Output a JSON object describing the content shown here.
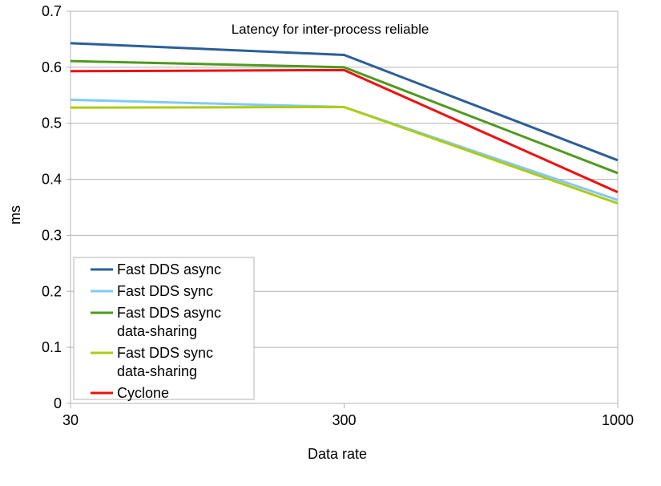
{
  "chart_data": {
    "type": "line",
    "title": "Latency for inter-process reliable",
    "xlabel": "Data rate",
    "ylabel": "ms",
    "categories": [
      "30",
      "300",
      "1000"
    ],
    "ylim": [
      0,
      0.7
    ],
    "yticks": [
      "0",
      "0.1",
      "0.2",
      "0.3",
      "0.4",
      "0.5",
      "0.6",
      "0.7"
    ],
    "grid": true,
    "legend_position": "bottom-left",
    "series": [
      {
        "name": "Fast DDS async",
        "label_lines": [
          "Fast DDS async"
        ],
        "color": "#2c5f96",
        "values": [
          0.643,
          0.622,
          0.434
        ]
      },
      {
        "name": "Fast DDS sync",
        "label_lines": [
          "Fast DDS sync"
        ],
        "color": "#83c9f4",
        "values": [
          0.542,
          0.529,
          0.363
        ]
      },
      {
        "name": "Fast DDS async data-sharing",
        "label_lines": [
          "Fast DDS async",
          "data-sharing"
        ],
        "color": "#4e9a1f",
        "values": [
          0.611,
          0.6,
          0.411
        ]
      },
      {
        "name": "Fast DDS sync data-sharing",
        "label_lines": [
          "Fast DDS sync",
          "data-sharing"
        ],
        "color": "#aecb14",
        "values": [
          0.528,
          0.529,
          0.357
        ]
      },
      {
        "name": "Cyclone",
        "label_lines": [
          "Cyclone"
        ],
        "color": "#ee1111",
        "values": [
          0.593,
          0.595,
          0.377
        ]
      }
    ]
  }
}
